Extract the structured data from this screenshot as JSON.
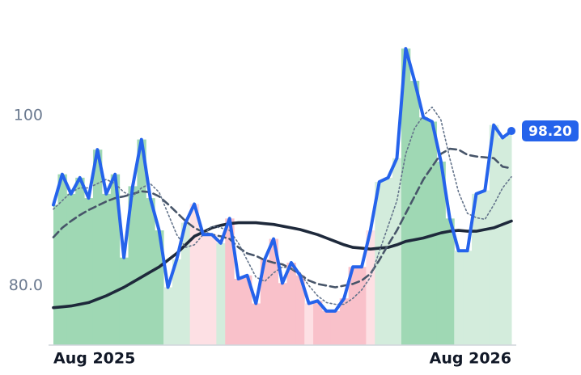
{
  "chart_data": {
    "type": "line",
    "x": [
      0,
      1,
      2,
      3,
      4,
      5,
      6,
      7,
      8,
      9,
      10,
      11,
      12,
      13,
      14,
      15,
      16,
      17,
      18,
      19,
      20,
      21,
      22,
      23,
      24,
      25,
      26,
      27,
      28,
      29,
      30,
      31,
      32,
      33,
      34,
      35,
      36,
      37,
      38,
      39,
      40,
      41,
      42,
      43,
      44,
      45,
      46,
      47,
      48,
      49,
      50,
      51,
      52
    ],
    "xlim": [
      0,
      52
    ],
    "xticks": [
      {
        "value": 0,
        "label": "Aug 2025"
      },
      {
        "value": 52,
        "label": "Aug 2026"
      }
    ],
    "ylim": [
      73,
      110
    ],
    "yticks": [
      {
        "value": 80,
        "label": "80.0"
      },
      100
    ],
    "area_colors": [
      "#9fd8b4",
      "#9fd8b4",
      "#9fd8b4",
      "#9fd8b4",
      "#9fd8b4",
      "#9fd8b4",
      "#9fd8b4",
      "#9fd8b4",
      "#9fd8b4",
      "#9fd8b4",
      "#9fd8b4",
      "#9fd8b4",
      "#9fd8b4",
      "#d3ecdc",
      "#d3ecdc",
      "#d3ecdc",
      "#fde0e4",
      "#fde0e4",
      "#fde0e4",
      "#d3ecdc",
      "#f9c1ca",
      "#f9c1ca",
      "#f9c1ca",
      "#f9c1ca",
      "#f9c1ca",
      "#f9c1ca",
      "#f9c1ca",
      "#f9c1ca",
      "#f9c1ca",
      "#fde0e4",
      "#f9c1ca",
      "#f9c1ca",
      "#f9c1ca",
      "#f9c1ca",
      "#f9c1ca",
      "#f9c1ca",
      "#fde0e4",
      "#d3ecdc",
      "#d3ecdc",
      "#d3ecdc",
      "#9fd8b4",
      "#9fd8b4",
      "#9fd8b4",
      "#9fd8b4",
      "#9fd8b4",
      "#9fd8b4",
      "#d3ecdc",
      "#d3ecdc",
      "#d3ecdc",
      "#d3ecdc",
      "#d3ecdc",
      "#d3ecdc",
      "#d3ecdc"
    ],
    "series": [
      {
        "color": "#2563eb",
        "style": "solid",
        "width": 4,
        "last_value_label": "98.20",
        "values": [
          89.5,
          93.1,
          90.8,
          92.7,
          90.3,
          96,
          90.8,
          93.1,
          83.3,
          91.7,
          97.2,
          90.3,
          86.5,
          79.8,
          83.1,
          87.4,
          89.6,
          86,
          86,
          85,
          87.9,
          80.8,
          81.2,
          77.9,
          83.1,
          85.5,
          80.3,
          82.7,
          81.2,
          77.9,
          78.2,
          77,
          77,
          78.5,
          82.2,
          82.2,
          86.5,
          92.2,
          92.7,
          95,
          107.9,
          104.1,
          99.8,
          99.3,
          94.6,
          87.9,
          84.1,
          84.1,
          90.8,
          91.2,
          98.9,
          97.4,
          98.2
        ]
      },
      {
        "color": "#64748b",
        "style": "dotted",
        "width": 1.6,
        "values": [
          89,
          90,
          91,
          91.5,
          91.5,
          92,
          92.5,
          92,
          91,
          90.5,
          91.5,
          92,
          91,
          88.5,
          86,
          84.5,
          84.8,
          86,
          87,
          86.8,
          86.5,
          85,
          83,
          81,
          80.5,
          81.5,
          82.2,
          82,
          81.5,
          80,
          78.8,
          78,
          77.8,
          77.8,
          78.5,
          79.5,
          81,
          84,
          87,
          90,
          95.5,
          98.5,
          100,
          101,
          99.5,
          95,
          91,
          88.5,
          88,
          87.8,
          89.5,
          91.5,
          92.8
        ]
      },
      {
        "color": "#475569",
        "style": "dashed",
        "width": 2.6,
        "values": [
          85.7,
          86.8,
          87.6,
          88.3,
          88.9,
          89.4,
          89.9,
          90.3,
          90.5,
          90.8,
          91.1,
          91,
          90.5,
          89.6,
          88.6,
          87.6,
          86.8,
          86.3,
          86,
          85.8,
          85.5,
          84.5,
          83.8,
          83.5,
          83,
          82.7,
          82.5,
          82,
          81.3,
          80.6,
          80.2,
          80,
          79.8,
          80,
          80.2,
          80.6,
          81.4,
          83,
          84.8,
          86.5,
          88.5,
          90.5,
          92.5,
          94,
          95.5,
          96.1,
          96,
          95.4,
          95.2,
          95.1,
          95,
          94,
          93.8
        ]
      },
      {
        "color": "#1e293b",
        "style": "solid",
        "width": 3.6,
        "values": [
          77.4,
          77.5,
          77.6,
          77.8,
          78,
          78.4,
          78.8,
          79.3,
          79.8,
          80.4,
          81,
          81.6,
          82.2,
          83,
          83.8,
          84.8,
          85.8,
          86.3,
          86.8,
          87.1,
          87.3,
          87.4,
          87.4,
          87.4,
          87.3,
          87.2,
          87,
          86.8,
          86.6,
          86.3,
          86,
          85.6,
          85.2,
          84.8,
          84.5,
          84.4,
          84.3,
          84.4,
          84.5,
          84.8,
          85.2,
          85.4,
          85.6,
          85.9,
          86.2,
          86.4,
          86.5,
          86.4,
          86.4,
          86.6,
          86.8,
          87.2,
          87.6
        ]
      }
    ]
  }
}
